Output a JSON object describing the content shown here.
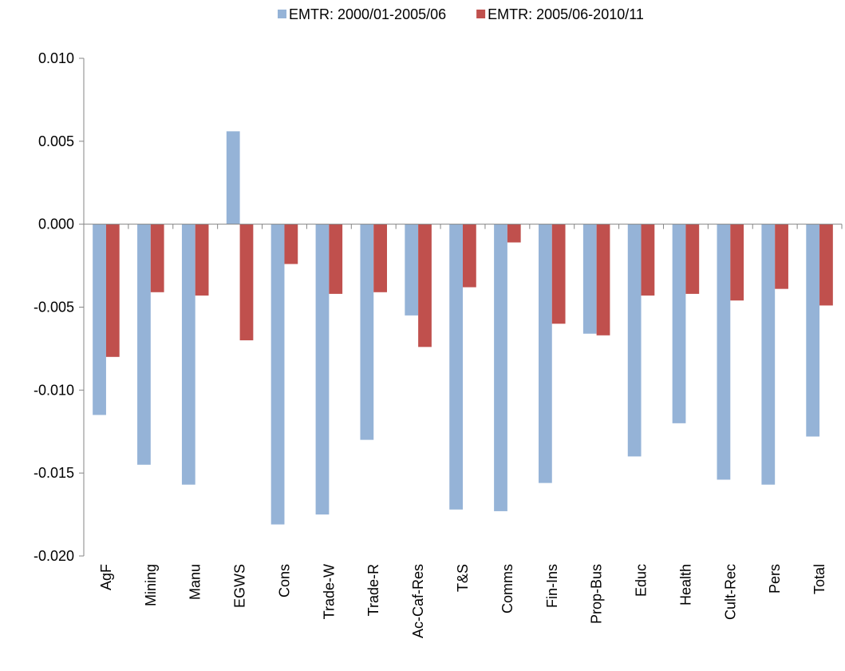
{
  "chart_data": {
    "type": "bar",
    "categories": [
      "AgF",
      "Mining",
      "Manu",
      "EGWS",
      "Cons",
      "Trade-W",
      "Trade-R",
      "Ac-Caf-Res",
      "T&S",
      "Comms",
      "Fin-Ins",
      "Prop-Bus",
      "Educ",
      "Health",
      "Cult-Rec",
      "Pers",
      "Total"
    ],
    "series": [
      {
        "name": "EMTR: 2000/01-2005/06",
        "color": "#95b3d7",
        "values": [
          -0.0115,
          -0.0145,
          -0.0157,
          0.0056,
          -0.0181,
          -0.0175,
          -0.013,
          -0.0055,
          -0.0172,
          -0.0173,
          -0.0156,
          -0.0066,
          -0.014,
          -0.012,
          -0.0154,
          -0.0157,
          -0.0128
        ]
      },
      {
        "name": "EMTR: 2005/06-2010/11",
        "color": "#c0504d",
        "values": [
          -0.008,
          -0.0041,
          -0.0043,
          -0.007,
          -0.0024,
          -0.0042,
          -0.0041,
          -0.0074,
          -0.0038,
          -0.0011,
          -0.006,
          -0.0067,
          -0.0043,
          -0.0042,
          -0.0046,
          -0.0039,
          -0.0049
        ]
      }
    ],
    "ylim": [
      -0.02,
      0.01
    ],
    "yticks": [
      {
        "value": -0.02,
        "label": "-0.020"
      },
      {
        "value": -0.015,
        "label": "-0.015"
      },
      {
        "value": -0.01,
        "label": "-0.010"
      },
      {
        "value": -0.005,
        "label": "-0.005"
      },
      {
        "value": 0,
        "label": "0.000"
      },
      {
        "value": 0.005,
        "label": "0.005"
      },
      {
        "value": 0.01,
        "label": "0.010"
      }
    ],
    "grid": false,
    "legend": "top"
  }
}
